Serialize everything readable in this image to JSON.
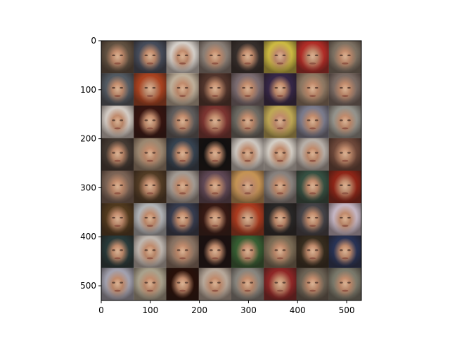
{
  "chart_data": {
    "type": "heatmap",
    "description_free": true,
    "image_extent": {
      "x": [
        0,
        530
      ],
      "y": [
        0,
        530
      ]
    },
    "grid": {
      "rows": 8,
      "cols": 8
    },
    "xaxis": {
      "ticks": [
        0,
        100,
        200,
        300,
        400,
        500
      ],
      "labels": [
        "0",
        "100",
        "200",
        "300",
        "400",
        "500"
      ]
    },
    "yaxis": {
      "ticks": [
        0,
        100,
        200,
        300,
        400,
        500
      ],
      "labels": [
        "0",
        "100",
        "200",
        "300",
        "400",
        "500"
      ],
      "inverted": true
    },
    "title": "",
    "xlabel": "",
    "ylabel": "",
    "tiles": [
      [
        "#6b5a48",
        "#4c5566",
        "#f2ede6",
        "#9a8f86",
        "#3a3330",
        "#e8d44a",
        "#c8302a",
        "#8c8070"
      ],
      [
        "#5c6670",
        "#c04a22",
        "#d8c8b0",
        "#5a3a30",
        "#8a7a80",
        "#3a2a50",
        "#a08870",
        "#8a7a72"
      ],
      [
        "#f0e8e0",
        "#3a1410",
        "#6a6868",
        "#8a3a36",
        "#7a7870",
        "#d8c060",
        "#8a8ca0",
        "#a8a8a0"
      ],
      [
        "#4a4038",
        "#b09a80",
        "#3a4a5a",
        "#101010",
        "#e8e2da",
        "#f0eae0",
        "#d0c8c0",
        "#7a5040"
      ],
      [
        "#8a7060",
        "#5a4228",
        "#b8b0a8",
        "#6a5060",
        "#e0a860",
        "#9a9490",
        "#3a5a4a",
        "#a02818"
      ],
      [
        "#5a4020",
        "#c8ccd0",
        "#3a4258",
        "#3a1a14",
        "#c04020",
        "#2a2a2a",
        "#4a4a50",
        "#e0d0e0"
      ],
      [
        "#2a4040",
        "#d8d0c8",
        "#9a8270",
        "#1a1010",
        "#3a6a38",
        "#8a7a60",
        "#3a3020",
        "#2a3860"
      ],
      [
        "#b8b8c8",
        "#c0b8a0",
        "#2a1008",
        "#d0c0b0",
        "#9a9890",
        "#a02a2a",
        "#7a7060",
        "#8a8a7a"
      ]
    ],
    "colormap_palette": {
      "face_skin": "#c89a7a",
      "hair_dark": "#2a1a14",
      "noise_red": "#e02020",
      "noise_green": "#20c040",
      "noise_blue": "#2040e0"
    }
  }
}
